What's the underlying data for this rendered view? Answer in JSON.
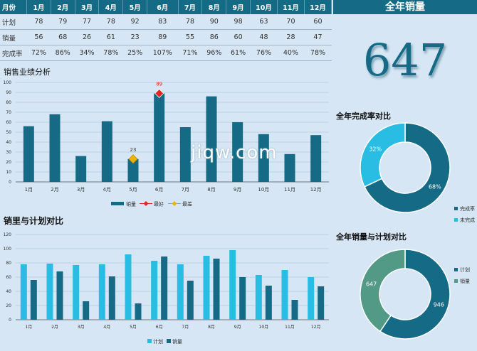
{
  "table": {
    "header": [
      "月份",
      "1月",
      "2月",
      "3月",
      "4月",
      "5月",
      "6月",
      "7月",
      "8月",
      "9月",
      "10月",
      "11月",
      "12月"
    ],
    "rows": [
      {
        "label": "计划",
        "values": [
          "78",
          "79",
          "77",
          "78",
          "92",
          "83",
          "78",
          "90",
          "98",
          "63",
          "70",
          "60"
        ]
      },
      {
        "label": "销量",
        "values": [
          "56",
          "68",
          "26",
          "61",
          "23",
          "89",
          "55",
          "86",
          "60",
          "48",
          "28",
          "47"
        ]
      },
      {
        "label": "完成率",
        "values": [
          "72%",
          "86%",
          "34%",
          "78%",
          "25%",
          "107%",
          "71%",
          "96%",
          "61%",
          "76%",
          "40%",
          "78%"
        ]
      }
    ]
  },
  "kpi": {
    "title": "全年销量",
    "value": "647"
  },
  "watermark": "jiqw.com",
  "colors": {
    "dark": "#156b86",
    "light": "#29bde3",
    "green": "#529a85",
    "marker_red": "#e52322",
    "marker_gold": "#f0b400",
    "title_bar": "#156b86"
  },
  "chart_data": [
    {
      "type": "bar",
      "title": "销售业绩分析",
      "categories": [
        "1月",
        "2月",
        "3月",
        "4月",
        "5月",
        "6月",
        "7月",
        "8月",
        "9月",
        "10月",
        "11月",
        "12月"
      ],
      "series": [
        {
          "name": "销量",
          "values": [
            56,
            68,
            26,
            61,
            23,
            89,
            55,
            86,
            60,
            48,
            28,
            47
          ]
        },
        {
          "name": "最好",
          "type": "marker",
          "values": [
            null,
            null,
            null,
            null,
            null,
            89,
            null,
            null,
            null,
            null,
            null,
            null
          ]
        },
        {
          "name": "最差",
          "type": "marker",
          "values": [
            null,
            null,
            null,
            null,
            23,
            null,
            null,
            null,
            null,
            null,
            null,
            null
          ]
        }
      ],
      "data_labels": [
        {
          "category": "6月",
          "value": "89"
        },
        {
          "category": "5月",
          "value": "23"
        }
      ],
      "yticks": [
        "0",
        "10",
        "20",
        "30",
        "40",
        "50",
        "60",
        "70",
        "80",
        "90",
        "100"
      ],
      "ylim": [
        0,
        100
      ],
      "grid": true,
      "legend": "bottom"
    },
    {
      "type": "bar",
      "title": "销里与计划对比",
      "categories": [
        "1月",
        "2月",
        "3月",
        "4月",
        "5月",
        "6月",
        "7月",
        "8月",
        "9月",
        "10月",
        "11月",
        "12月"
      ],
      "series": [
        {
          "name": "计划",
          "values": [
            78,
            79,
            77,
            78,
            92,
            83,
            78,
            90,
            98,
            63,
            70,
            60
          ]
        },
        {
          "name": "销量",
          "values": [
            56,
            68,
            26,
            61,
            23,
            89,
            55,
            86,
            60,
            48,
            28,
            47
          ]
        }
      ],
      "yticks": [
        "0",
        "20",
        "40",
        "60",
        "80",
        "100",
        "120"
      ],
      "ylim": [
        0,
        120
      ],
      "grid": true,
      "legend": "bottom"
    },
    {
      "type": "pie",
      "title": "全年完成率对比",
      "labels": [
        "完成率",
        "未完成"
      ],
      "values": [
        68,
        32
      ],
      "slice_labels": [
        "68%",
        "32%"
      ],
      "legend": "right"
    },
    {
      "type": "pie",
      "title": "全年销量与计划对比",
      "labels": [
        "计划",
        "销量"
      ],
      "values": [
        946,
        647
      ],
      "slice_labels": [
        "946",
        "647"
      ],
      "legend": "right"
    }
  ]
}
